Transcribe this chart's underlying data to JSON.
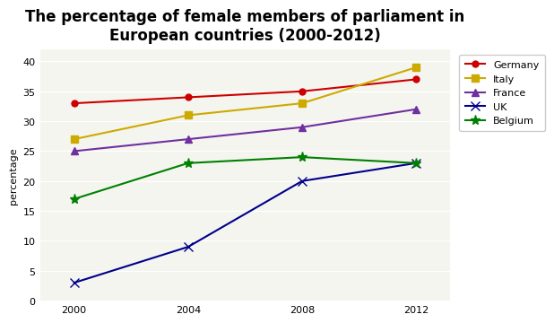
{
  "title": "The percentage of female members of parliament in\nEuropean countries (2000-2012)",
  "xlabel": "",
  "ylabel": "percentage",
  "years": [
    2000,
    2004,
    2008,
    2012
  ],
  "series": [
    {
      "label": "Germany",
      "values": [
        33,
        34,
        35,
        37
      ],
      "color": "#cc0000",
      "marker": "o",
      "markersize": 5,
      "markerfacecolor": "#cc0000"
    },
    {
      "label": "Italy",
      "values": [
        27,
        31,
        33,
        39
      ],
      "color": "#ccaa00",
      "marker": "s",
      "markersize": 6,
      "markerfacecolor": "#ccaa00"
    },
    {
      "label": "France",
      "values": [
        25,
        27,
        29,
        32
      ],
      "color": "#7030a0",
      "marker": "^",
      "markersize": 6,
      "markerfacecolor": "#7030a0"
    },
    {
      "label": "UK",
      "values": [
        3,
        9,
        20,
        23
      ],
      "color": "#00008b",
      "marker": "x",
      "markersize": 7,
      "markerfacecolor": "#00008b"
    },
    {
      "label": "Belgium",
      "values": [
        17,
        23,
        24,
        23
      ],
      "color": "#008000",
      "marker": "*",
      "markersize": 8,
      "markerfacecolor": "#008000"
    }
  ],
  "ylim": [
    0,
    42
  ],
  "yticks": [
    0,
    5,
    10,
    15,
    20,
    25,
    30,
    35,
    40
  ],
  "xticks": [
    2000,
    2004,
    2008,
    2012
  ],
  "background_color": "#ffffff",
  "plot_bg_color": "#f5f5f0",
  "grid_color": "#ffffff",
  "title_fontsize": 12,
  "axis_label_fontsize": 8,
  "tick_fontsize": 8,
  "legend_fontsize": 8
}
